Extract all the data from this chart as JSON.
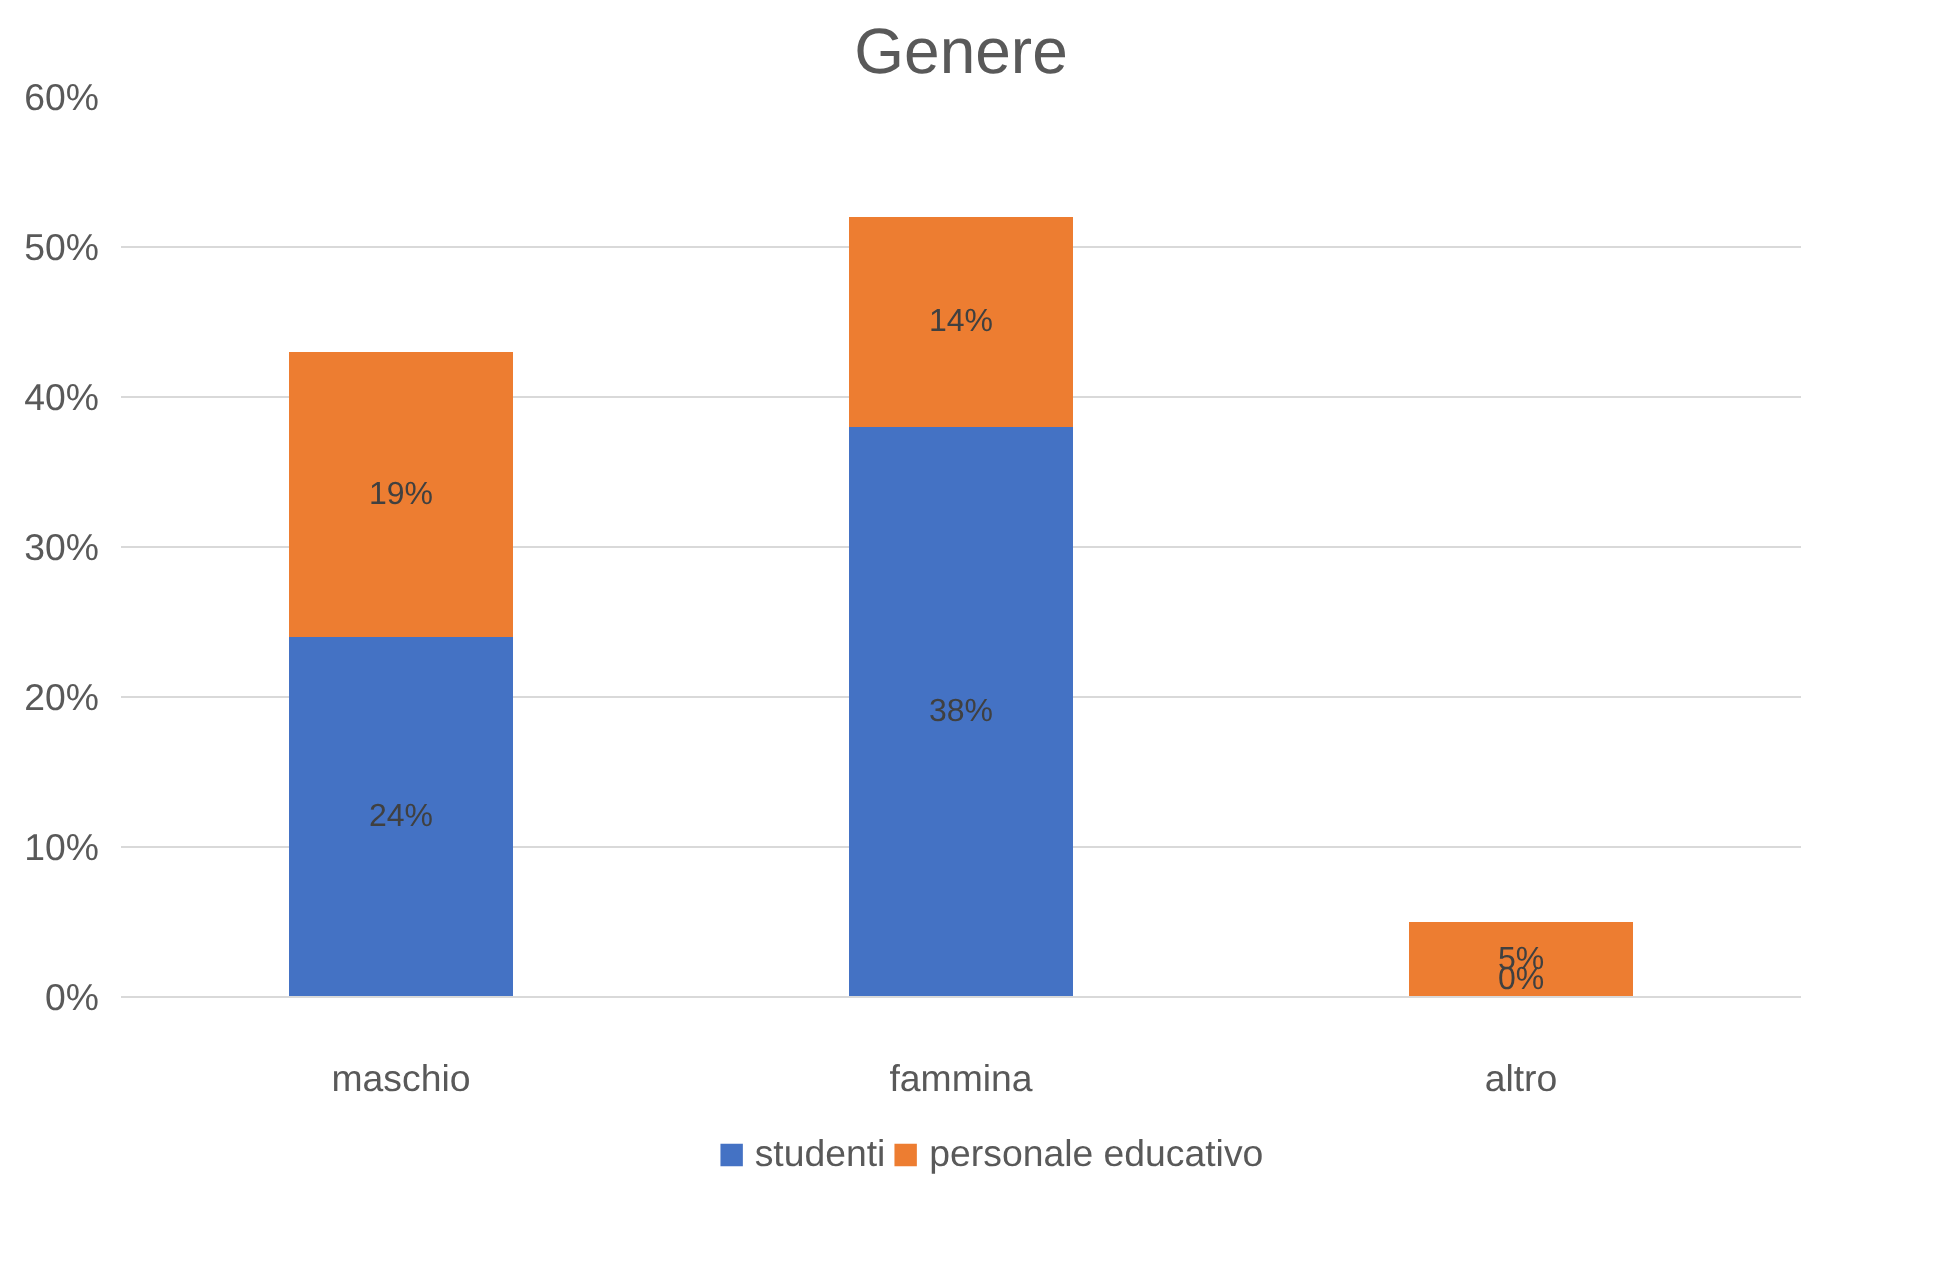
{
  "chart_data": {
    "type": "bar",
    "title": "Genere",
    "stacked": true,
    "categories": [
      "maschio",
      "fammina",
      "altro"
    ],
    "series": [
      {
        "name": "studenti",
        "color": "#4472c4",
        "values": [
          24,
          38,
          0
        ],
        "value_labels": [
          "24%",
          "38%",
          "0%"
        ]
      },
      {
        "name": "personale educativo",
        "color": "#ed7d31",
        "values": [
          19,
          14,
          5
        ],
        "value_labels": [
          "19%",
          "14%",
          "5%"
        ]
      }
    ],
    "ylim": [
      0,
      60
    ],
    "yticks": [
      {
        "value": 0,
        "label": "0%"
      },
      {
        "value": 10,
        "label": "10%"
      },
      {
        "value": 20,
        "label": "20%"
      },
      {
        "value": 30,
        "label": "30%"
      },
      {
        "value": 40,
        "label": "40%"
      },
      {
        "value": 50,
        "label": "50%"
      },
      {
        "value": 60,
        "label": "60%"
      }
    ],
    "grid": "y",
    "legend": "bottom"
  }
}
